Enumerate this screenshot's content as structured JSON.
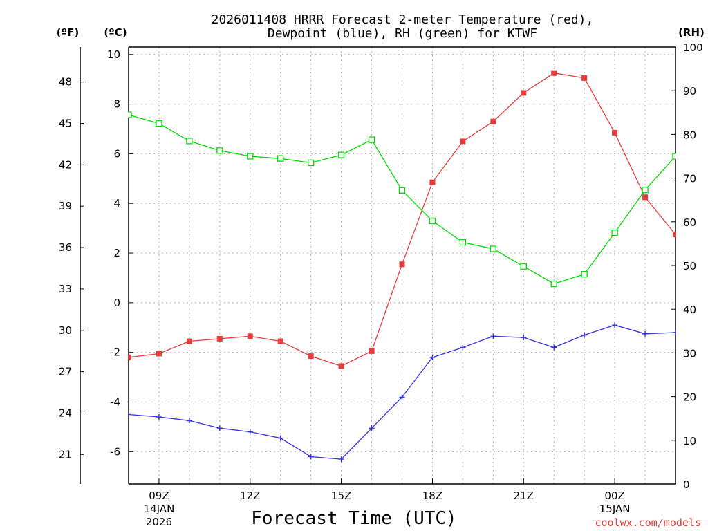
{
  "chart_data": {
    "type": "line",
    "title_line1": "2026011408 HRRR Forecast 2-meter Temperature (red),",
    "title_line2": "Dewpoint (blue), RH (green) for KTWF",
    "xlabel": "Forecast Time (UTC)",
    "credit": "coolwx.com/models",
    "units": {
      "fahrenheit": "(ºF)",
      "celsius": "(ºC)",
      "rh": "(RH)"
    },
    "x_hours": [
      8,
      9,
      10,
      11,
      12,
      13,
      14,
      15,
      16,
      17,
      18,
      19,
      20,
      21,
      22,
      23,
      24,
      25,
      26
    ],
    "xlim": [
      8,
      26
    ],
    "celsius_axis": {
      "ylim": [
        -7.3,
        10.3
      ],
      "ticks": [
        -6,
        -4,
        -2,
        0,
        2,
        4,
        6,
        8,
        10
      ]
    },
    "fahrenheit_ticks": [
      21,
      24,
      27,
      30,
      33,
      36,
      39,
      42,
      45,
      48
    ],
    "rh_axis": {
      "ylim": [
        0,
        100
      ],
      "ticks": [
        0,
        10,
        20,
        30,
        40,
        50,
        60,
        70,
        80,
        90,
        100
      ]
    },
    "x_ticks": [
      {
        "hour": 9,
        "label": "09Z",
        "date": "14JAN",
        "year": "2026"
      },
      {
        "hour": 12,
        "label": "12Z"
      },
      {
        "hour": 15,
        "label": "15Z"
      },
      {
        "hour": 18,
        "label": "18Z"
      },
      {
        "hour": 21,
        "label": "21Z"
      },
      {
        "hour": 24,
        "label": "00Z",
        "date": "15JAN"
      }
    ],
    "series": [
      {
        "name": "Temperature",
        "axis": "celsius",
        "color": "#e83c3c",
        "marker": "filled-square",
        "values": [
          -2.2,
          -2.05,
          -1.55,
          -1.45,
          -1.35,
          -1.55,
          -2.15,
          -2.55,
          -1.95,
          1.55,
          4.85,
          6.5,
          7.3,
          8.45,
          9.25,
          9.05,
          6.85,
          4.25,
          2.75
        ]
      },
      {
        "name": "Dewpoint",
        "axis": "celsius",
        "color": "#3232e6",
        "marker": "plus",
        "values": [
          -4.5,
          -4.6,
          -4.75,
          -5.05,
          -5.2,
          -5.45,
          -6.2,
          -6.3,
          -5.05,
          -3.8,
          -2.2,
          -1.8,
          -1.35,
          -1.4,
          -1.8,
          -1.3,
          -0.9,
          -1.25,
          -1.2
        ]
      },
      {
        "name": "RH",
        "axis": "rh",
        "color": "#00dc00",
        "marker": "open-square",
        "values": [
          84.5,
          82.5,
          78.5,
          76.3,
          75.0,
          74.5,
          73.5,
          75.3,
          78.8,
          67.2,
          60.2,
          55.3,
          53.8,
          49.8,
          45.8,
          48.0,
          57.5,
          67.3,
          75.0
        ]
      }
    ]
  }
}
